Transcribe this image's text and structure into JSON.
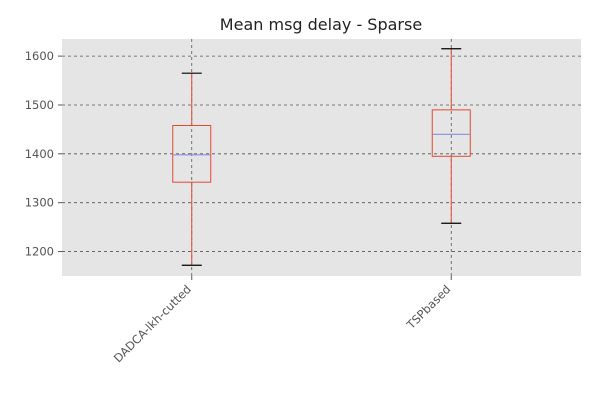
{
  "chart_data": {
    "type": "box",
    "title": "Mean msg delay - Sparse",
    "xlabel": "",
    "ylabel": "",
    "categories": [
      "DADCA-lkh-cutted",
      "TSPbased"
    ],
    "boxes": [
      {
        "name": "DADCA-lkh-cutted",
        "whisker_low": 1172,
        "q1": 1342,
        "median": 1398,
        "q3": 1458,
        "whisker_high": 1565
      },
      {
        "name": "TSPbased",
        "whisker_low": 1258,
        "q1": 1395,
        "median": 1440,
        "q3": 1490,
        "whisker_high": 1615
      }
    ],
    "ylim": [
      1150,
      1635
    ],
    "yticks": [
      1200,
      1300,
      1400,
      1500,
      1600
    ],
    "ytick_labels": [
      "1200",
      "1300",
      "1400",
      "1500",
      "1600"
    ],
    "grid": true,
    "colors": {
      "background": "#e5e5e5",
      "box": "#e24a33",
      "median": "#8e8ede",
      "whisker_cap": "#000000",
      "grid": "#555555"
    }
  }
}
